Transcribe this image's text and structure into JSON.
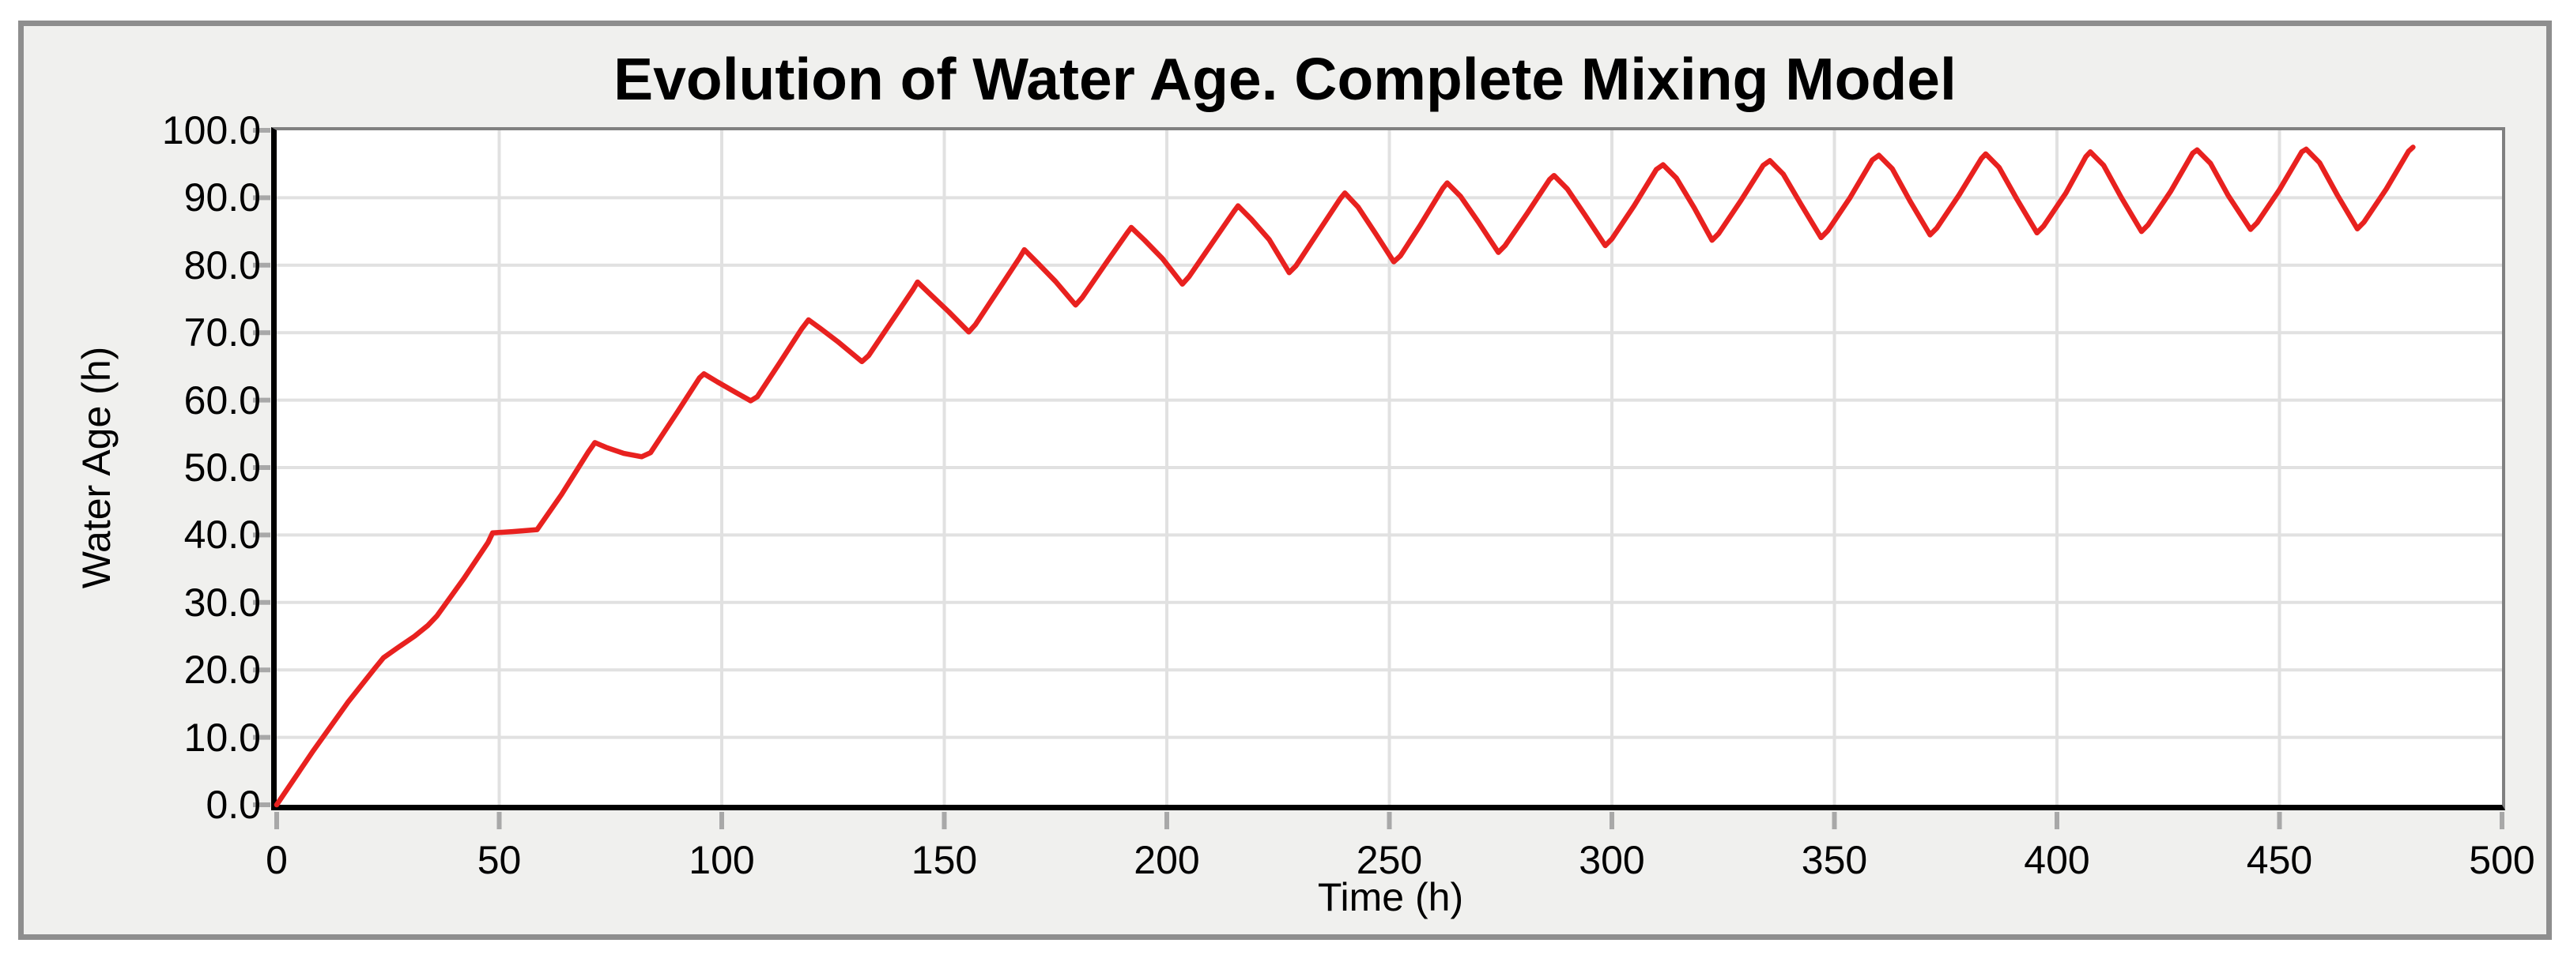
{
  "figure": {
    "title": "Evolution of Water Age. Complete Mixing Model",
    "x_axis": {
      "label": "Time (h)",
      "ticks": [
        "0",
        "50",
        "100",
        "150",
        "200",
        "250",
        "300",
        "350",
        "400",
        "450",
        "500"
      ],
      "tick_values": [
        0,
        50,
        100,
        150,
        200,
        250,
        300,
        350,
        400,
        450,
        500
      ]
    },
    "y_axis": {
      "label": "Water Age (h)",
      "ticks": [
        "0.0",
        "10.0",
        "20.0",
        "30.0",
        "40.0",
        "50.0",
        "60.0",
        "70.0",
        "80.0",
        "90.0",
        "100.0"
      ],
      "tick_values": [
        0,
        10,
        20,
        30,
        40,
        50,
        60,
        70,
        80,
        90,
        100
      ]
    },
    "colors": {
      "line": "#e8211f",
      "figure_background": "#f0f0ee",
      "plot_background": "#ffffff",
      "gridline": "#e1e1e1",
      "axis": "#000000",
      "frame_border": "#8e8e8e",
      "plot_border": "#808080",
      "tick_mark": "#a8a8a8",
      "text": "#000000"
    }
  },
  "chart_data": {
    "type": "line",
    "title": "Evolution of Water Age. Complete Mixing Model",
    "xlabel": "Time (h)",
    "ylabel": "Water Age (h)",
    "xlim": [
      0,
      500
    ],
    "ylim": [
      0,
      100
    ],
    "x_tick_step": 50,
    "y_tick_step": 10,
    "grid": true,
    "legend": "none",
    "series": [
      {
        "name": "Water Age",
        "color": "#e8211f",
        "points": [
          [
            0,
            0
          ],
          [
            8,
            7.8
          ],
          [
            16,
            15.2
          ],
          [
            22,
            20.2
          ],
          [
            24,
            21.8
          ],
          [
            27,
            23.2
          ],
          [
            31,
            25.0
          ],
          [
            34,
            26.6
          ],
          [
            36,
            28.0
          ],
          [
            42,
            33.5
          ],
          [
            47.5,
            38.9
          ],
          [
            48.5,
            40.3
          ],
          [
            53,
            40.5
          ],
          [
            58.5,
            40.8
          ],
          [
            64,
            46.0
          ],
          [
            70,
            52.3
          ],
          [
            71.5,
            53.7
          ],
          [
            74,
            53.0
          ],
          [
            78,
            52.1
          ],
          [
            82,
            51.6
          ],
          [
            84,
            52.2
          ],
          [
            90,
            58.2
          ],
          [
            95,
            63.3
          ],
          [
            96,
            63.9
          ],
          [
            99,
            62.7
          ],
          [
            103,
            61.2
          ],
          [
            106.5,
            59.9
          ],
          [
            108,
            60.5
          ],
          [
            113,
            65.5
          ],
          [
            118,
            70.6
          ],
          [
            119.5,
            71.9
          ],
          [
            122,
            70.7
          ],
          [
            126,
            68.7
          ],
          [
            131.5,
            65.7
          ],
          [
            133,
            66.6
          ],
          [
            138,
            71.5
          ],
          [
            143,
            76.4
          ],
          [
            144,
            77.5
          ],
          [
            147,
            75.6
          ],
          [
            151,
            73.1
          ],
          [
            155.5,
            70.1
          ],
          [
            157,
            71.2
          ],
          [
            162,
            76.2
          ],
          [
            167,
            81.2
          ],
          [
            168,
            82.3
          ],
          [
            171,
            80.3
          ],
          [
            175,
            77.6
          ],
          [
            179.5,
            74.1
          ],
          [
            181,
            75.2
          ],
          [
            186,
            80.0
          ],
          [
            191,
            84.7
          ],
          [
            192,
            85.6
          ],
          [
            195,
            83.7
          ],
          [
            199,
            81.0
          ],
          [
            203.5,
            77.2
          ],
          [
            205,
            78.3
          ],
          [
            210,
            83.1
          ],
          [
            215,
            87.9
          ],
          [
            216,
            88.8
          ],
          [
            219,
            86.8
          ],
          [
            223,
            83.8
          ],
          [
            227.5,
            78.9
          ],
          [
            229,
            79.9
          ],
          [
            234,
            84.9
          ],
          [
            239,
            89.9
          ],
          [
            240,
            90.7
          ],
          [
            243,
            88.6
          ],
          [
            247,
            84.6
          ],
          [
            251,
            80.5
          ],
          [
            252.5,
            81.4
          ],
          [
            257,
            86.0
          ],
          [
            262,
            91.4
          ],
          [
            263,
            92.2
          ],
          [
            266,
            90.2
          ],
          [
            270,
            86.4
          ],
          [
            274.5,
            81.9
          ],
          [
            276,
            82.9
          ],
          [
            281,
            87.7
          ],
          [
            286,
            92.7
          ],
          [
            287,
            93.3
          ],
          [
            290,
            91.3
          ],
          [
            294,
            87.4
          ],
          [
            298.5,
            82.9
          ],
          [
            300,
            83.9
          ],
          [
            305,
            88.8
          ],
          [
            310,
            94.2
          ],
          [
            311.5,
            94.9
          ],
          [
            314.5,
            92.9
          ],
          [
            318.5,
            88.5
          ],
          [
            322.5,
            83.7
          ],
          [
            324,
            84.7
          ],
          [
            329,
            89.6
          ],
          [
            334,
            94.8
          ],
          [
            335.5,
            95.5
          ],
          [
            338.5,
            93.5
          ],
          [
            342.5,
            89.0
          ],
          [
            347,
            84.1
          ],
          [
            348.5,
            85.1
          ],
          [
            353.5,
            90.0
          ],
          [
            358.5,
            95.6
          ],
          [
            360,
            96.3
          ],
          [
            363,
            94.3
          ],
          [
            367,
            89.5
          ],
          [
            371.5,
            84.5
          ],
          [
            373,
            85.5
          ],
          [
            378,
            90.4
          ],
          [
            383,
            95.8
          ],
          [
            384,
            96.5
          ],
          [
            387,
            94.5
          ],
          [
            391,
            89.8
          ],
          [
            395.5,
            84.8
          ],
          [
            397,
            85.8
          ],
          [
            402,
            90.7
          ],
          [
            406.5,
            96.1
          ],
          [
            407.5,
            96.8
          ],
          [
            410.5,
            94.8
          ],
          [
            414.5,
            90.0
          ],
          [
            419,
            85.0
          ],
          [
            420.5,
            86.0
          ],
          [
            425.5,
            90.9
          ],
          [
            430.5,
            96.6
          ],
          [
            431.5,
            97.1
          ],
          [
            434.5,
            95.1
          ],
          [
            438.5,
            90.3
          ],
          [
            443.5,
            85.3
          ],
          [
            445,
            86.3
          ],
          [
            450,
            91.2
          ],
          [
            455,
            96.8
          ],
          [
            456,
            97.2
          ],
          [
            459,
            95.2
          ],
          [
            463,
            90.4
          ],
          [
            467.5,
            85.4
          ],
          [
            469,
            86.4
          ],
          [
            474,
            91.3
          ],
          [
            479,
            96.9
          ],
          [
            480,
            97.5
          ]
        ]
      }
    ]
  }
}
